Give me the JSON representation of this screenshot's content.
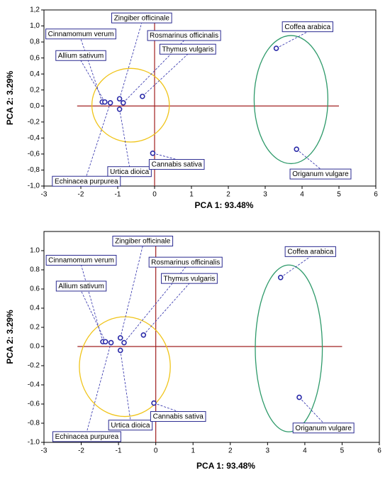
{
  "chart_data": [
    {
      "type": "scatter",
      "xlabel": "PCA 1: 93.48%",
      "ylabel": "PCA 2:  3.29%",
      "labels": [
        "Zingiber officinale",
        "Cinnamomum verum",
        "Rosmarinus officinalis",
        "Allium sativum",
        "Thymus vulgaris",
        "Coffea arabica",
        "Urtica dioica",
        "Cannabis sativa",
        "Echinacea purpurea",
        "Origanum vulgare"
      ],
      "x": [
        -0.95,
        -1.42,
        -0.85,
        -1.35,
        -0.33,
        3.3,
        -0.95,
        -0.05,
        -1.2,
        3.85
      ],
      "values": [
        0.09,
        0.05,
        0.04,
        0.05,
        0.12,
        0.72,
        -0.04,
        -0.59,
        0.04,
        -0.54
      ],
      "color": "#2a2aa8",
      "ellipses": [
        {
          "color": "#f0c419",
          "cx": -0.65,
          "cy": 0.01,
          "rx": 1.05,
          "ry": 0.46
        },
        {
          "color": "#2e9a6a",
          "cx": 3.7,
          "cy": 0.08,
          "rx": 1.0,
          "ry": 0.8
        }
      ],
      "xlim": [
        -3,
        6
      ],
      "xticks": [
        -3,
        -2,
        -1,
        0,
        1,
        2,
        3,
        4,
        5,
        6
      ],
      "ylim": [
        -1.0,
        1.2
      ],
      "yticks": [
        {
          "value": -1.0,
          "label": "-1,0"
        },
        {
          "value": -0.8,
          "label": "-0,8"
        },
        {
          "value": -0.6,
          "label": "-0,6"
        },
        {
          "value": -0.4,
          "label": "-0,4"
        },
        {
          "value": -0.2,
          "label": "-0,2"
        },
        {
          "value": 0.0,
          "label": "0,0"
        },
        {
          "value": 0.2,
          "label": "0,2"
        },
        {
          "value": 0.4,
          "label": "0,4"
        },
        {
          "value": 0.6,
          "label": "0,6"
        },
        {
          "value": 0.8,
          "label": "0,8"
        },
        {
          "value": 1.0,
          "label": "1,0"
        },
        {
          "value": 1.2,
          "label": "1,2"
        }
      ]
    },
    {
      "type": "scatter",
      "xlabel": "PCA 1: 93.48%",
      "ylabel": "PCA 2:  3.29%",
      "labels": [
        "Zingiber officinale",
        "Cinnamomum verum",
        "Rosmarinus officinalis",
        "Allium sativum",
        "Thymus vulgaris",
        "Coffea arabica",
        "Urtica dioica",
        "Cannabis sativa",
        "Echinacea purpurea",
        "Origanum vulgare"
      ],
      "x": [
        -0.95,
        -1.42,
        -0.85,
        -1.35,
        -0.33,
        3.35,
        -0.95,
        -0.05,
        -1.2,
        3.85
      ],
      "values": [
        0.09,
        0.05,
        0.04,
        0.05,
        0.12,
        0.72,
        -0.04,
        -0.59,
        0.04,
        -0.53
      ],
      "color": "#2a2aa8",
      "ellipses": [
        {
          "color": "#f0c419",
          "cx": -0.83,
          "cy": -0.21,
          "rx": 1.22,
          "ry": 0.52
        },
        {
          "color": "#2e9a6a",
          "cx": 3.57,
          "cy": -0.02,
          "rx": 0.9,
          "ry": 0.87
        }
      ],
      "xlim": [
        -3,
        6
      ],
      "xticks": [
        -3,
        -2,
        -1,
        0,
        1,
        2,
        3,
        4,
        5,
        6
      ],
      "ylim": [
        -1.0,
        1.2
      ],
      "yticks": [
        {
          "value": -1.0,
          "label": "-1.0"
        },
        -0.8,
        -0.6,
        -0.4,
        -0.2,
        {
          "value": 0.0,
          "label": "0.0"
        },
        0.2,
        0.4,
        0.6,
        0.8,
        {
          "value": 1.0,
          "label": "1.0"
        }
      ]
    }
  ]
}
